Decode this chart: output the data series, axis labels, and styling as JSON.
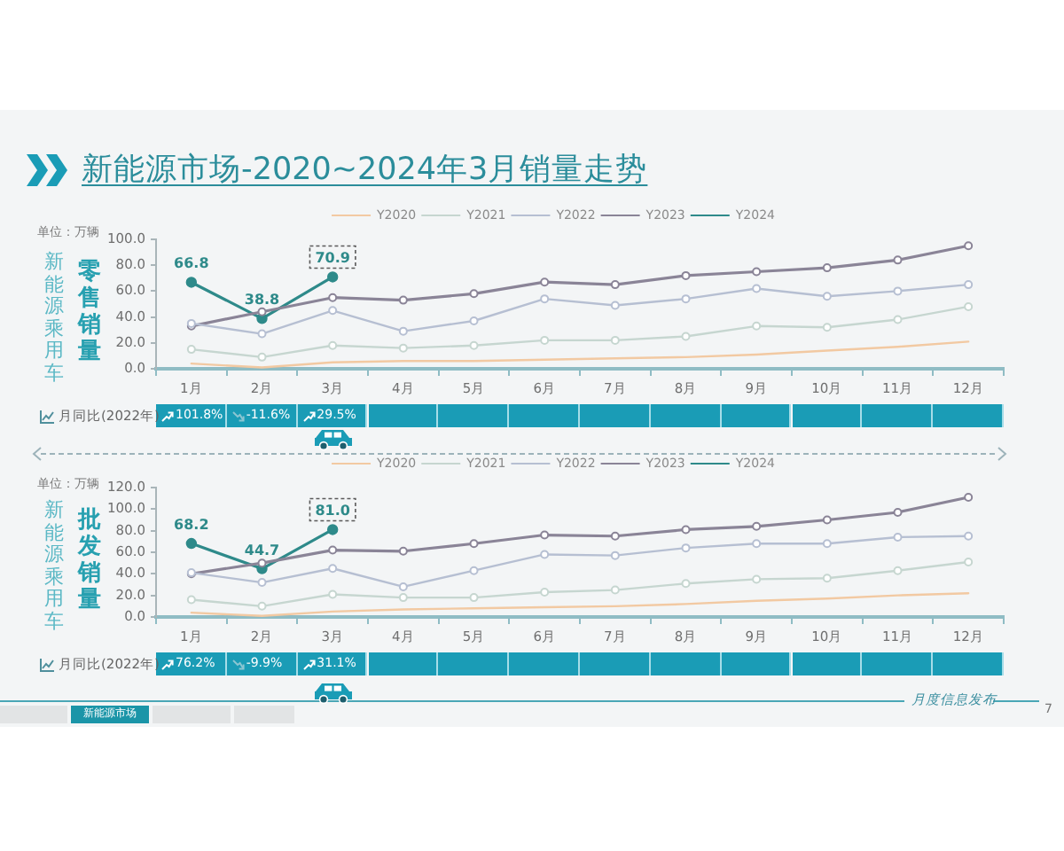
{
  "chart_data": [
    {
      "type": "line",
      "title": "新能源市场-2020~2024年3月销量走势",
      "subtitle": "零售销量",
      "ylabel": "新能源乘用车",
      "categories": [
        "1月",
        "2月",
        "3月",
        "4月",
        "5月",
        "6月",
        "7月",
        "8月",
        "9月",
        "10月",
        "11月",
        "12月"
      ],
      "series": [
        {
          "name": "Y2020",
          "color": "#f2c9a2",
          "marker": "none",
          "values": [
            4,
            1,
            5,
            6,
            6,
            7,
            8,
            9,
            11,
            14,
            17,
            21
          ]
        },
        {
          "name": "Y2021",
          "color": "#c6d6d0",
          "values": [
            15,
            9,
            18,
            16,
            18,
            22,
            22,
            25,
            33,
            32,
            38,
            48
          ]
        },
        {
          "name": "Y2022",
          "color": "#b6bfd2",
          "values": [
            35,
            27,
            45,
            29,
            37,
            54,
            49,
            54,
            62,
            56,
            60,
            65
          ]
        },
        {
          "name": "Y2023",
          "color": "#8a8497",
          "values": [
            33,
            44,
            55,
            53,
            58,
            67,
            65,
            72,
            75,
            78,
            84,
            95
          ]
        },
        {
          "name": "Y2024",
          "color": "#2e8a8a",
          "values": [
            66.8,
            38.8,
            70.9,
            null,
            null,
            null,
            null,
            null,
            null,
            null,
            null,
            null
          ],
          "value_labels": [
            "66.8",
            "38.8",
            "70.9",
            null,
            null,
            null,
            null,
            null,
            null,
            null,
            null,
            null
          ]
        }
      ],
      "ylim": [
        0,
        100
      ],
      "yticks": [
        {
          "value": 0,
          "label": "0.0"
        },
        {
          "value": 20,
          "label": "20.0"
        },
        {
          "value": 40,
          "label": "40.0"
        },
        {
          "value": 60,
          "label": "60.0"
        },
        {
          "value": 80,
          "label": "80.0"
        },
        {
          "value": 100,
          "label": "100.0"
        }
      ],
      "grid": false,
      "legend": "top",
      "marker": "circle",
      "annotations": [
        "单位：万辆",
        "月同比(2022年)",
        "101.8%",
        "-11.6%",
        "29.5%"
      ]
    },
    {
      "type": "line",
      "subtitle": "批发销量",
      "ylabel": "新能源乘用车",
      "categories": [
        "1月",
        "2月",
        "3月",
        "4月",
        "5月",
        "6月",
        "7月",
        "8月",
        "9月",
        "10月",
        "11月",
        "12月"
      ],
      "series": [
        {
          "name": "Y2020",
          "color": "#f2c9a2",
          "marker": "none",
          "values": [
            4,
            1,
            5,
            7,
            8,
            9,
            10,
            12,
            15,
            17,
            20,
            22
          ]
        },
        {
          "name": "Y2021",
          "color": "#c6d6d0",
          "values": [
            16,
            10,
            21,
            18,
            18,
            23,
            25,
            31,
            35,
            36,
            43,
            51
          ]
        },
        {
          "name": "Y2022",
          "color": "#b6bfd2",
          "values": [
            41,
            32,
            45,
            28,
            43,
            58,
            57,
            64,
            68,
            68,
            74,
            75
          ]
        },
        {
          "name": "Y2023",
          "color": "#8a8497",
          "values": [
            40,
            50,
            62,
            61,
            68,
            76,
            75,
            81,
            84,
            90,
            97,
            111
          ]
        },
        {
          "name": "Y2024",
          "color": "#2e8a8a",
          "values": [
            68.2,
            44.7,
            81.0,
            null,
            null,
            null,
            null,
            null,
            null,
            null,
            null,
            null
          ],
          "value_labels": [
            "68.2",
            "44.7",
            "81.0",
            null,
            null,
            null,
            null,
            null,
            null,
            null,
            null,
            null
          ]
        }
      ],
      "ylim": [
        0,
        120
      ],
      "yticks": [
        {
          "value": 0,
          "label": "0.0"
        },
        {
          "value": 20,
          "label": "20.0"
        },
        {
          "value": 40,
          "label": "40.0"
        },
        {
          "value": 60,
          "label": "60.0"
        },
        {
          "value": 80,
          "label": "80.0"
        },
        {
          "value": 100,
          "label": "100.0"
        },
        {
          "value": 120,
          "label": "120.0"
        }
      ],
      "grid": false,
      "legend": "top",
      "marker": "circle",
      "annotations": [
        "单位：万辆",
        "月同比(2022年)",
        "76.2%",
        "-9.9%",
        "31.1%",
        "新能源市场",
        "月度信息发布",
        "7"
      ]
    }
  ]
}
